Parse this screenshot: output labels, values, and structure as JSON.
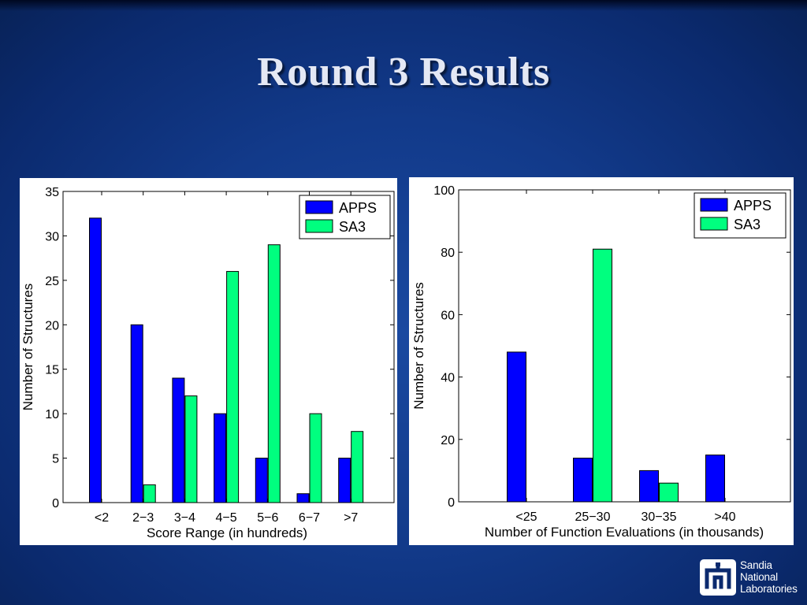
{
  "slide": {
    "title": "Round 3 Results"
  },
  "logo": {
    "lines": [
      "Sandia",
      "National",
      "Laboratories"
    ],
    "icon": "sandia-thunderbird-icon"
  },
  "colors": {
    "apps": "#0000ff",
    "sa3": "#00ff7f",
    "background": "#123a8a"
  },
  "chart_data": [
    {
      "type": "bar",
      "title": "",
      "xlabel": "Score Range (in hundreds)",
      "ylabel": "Number of Structures",
      "categories": [
        "<2",
        "2−3",
        "3−4",
        "4−5",
        "5−6",
        "6−7",
        ">7"
      ],
      "series": [
        {
          "name": "APPS",
          "values": [
            32,
            20,
            14,
            10,
            5,
            1,
            5
          ]
        },
        {
          "name": "SA3",
          "values": [
            0,
            2,
            12,
            26,
            29,
            10,
            8
          ]
        }
      ],
      "ylim": [
        0,
        35
      ],
      "yticks": [
        0,
        5,
        10,
        15,
        20,
        25,
        30,
        35
      ],
      "legend": "top-right",
      "grid": false
    },
    {
      "type": "bar",
      "title": "",
      "xlabel": "Number of Function Evaluations (in thousands)",
      "ylabel": "Number of Structures",
      "categories": [
        "<25",
        "25−30",
        "30−35",
        ">40"
      ],
      "series": [
        {
          "name": "APPS",
          "values": [
            48,
            14,
            10,
            15
          ]
        },
        {
          "name": "SA3",
          "values": [
            0,
            81,
            6,
            0
          ]
        }
      ],
      "ylim": [
        0,
        100
      ],
      "yticks": [
        0,
        20,
        40,
        60,
        80,
        100
      ],
      "legend": "top-right",
      "grid": false
    }
  ]
}
